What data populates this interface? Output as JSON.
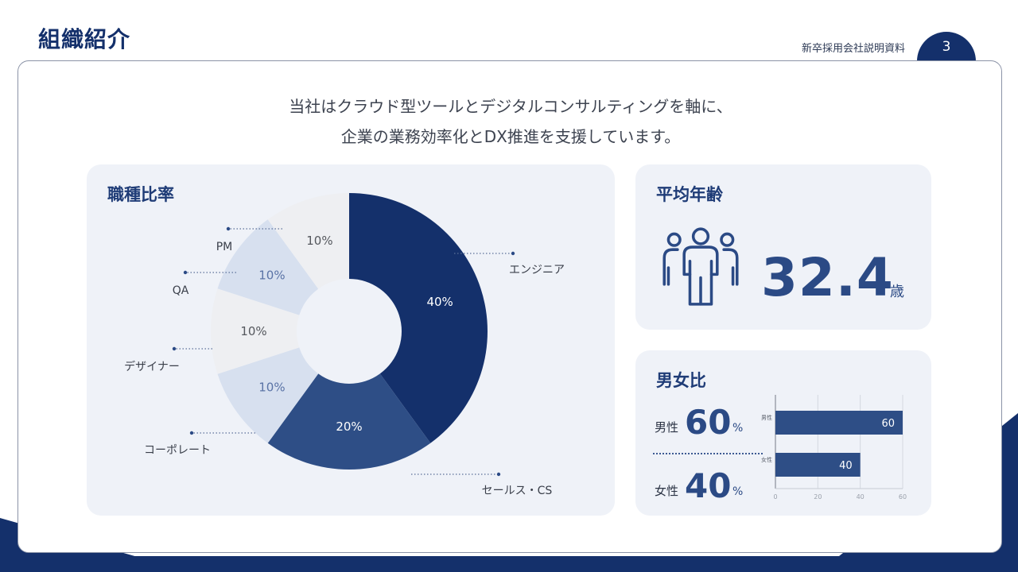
{
  "header": {
    "title": "組織紹介",
    "doc_label": "新卒採用会社説明資料",
    "page_number": "3"
  },
  "intro": {
    "line1": "当社はクラウド型ツールとデジタルコンサルティングを軸に、",
    "line2": "企業の業務効率化とDX推進を支援しています。"
  },
  "job_panel": {
    "title": "職種比率"
  },
  "age_panel": {
    "title": "平均年齢",
    "value": "32.4",
    "unit": "歳",
    "icon": "people-group-icon"
  },
  "gender_panel": {
    "title": "男女比",
    "male_label": "男性",
    "male_value": "60",
    "male_unit": "%",
    "female_label": "女性",
    "female_value": "40",
    "female_unit": "%"
  },
  "colors": {
    "navy": "#14306b",
    "blue": "#2e4e86",
    "light_blue": "#d7e0ef",
    "light_gray": "#eeeff2",
    "panel_bg": "#eff2f8"
  },
  "chart_data": [
    {
      "type": "pie",
      "title": "職種比率",
      "categories": [
        "エンジニア",
        "セールス・CS",
        "コーポレート",
        "デザイナー",
        "QA",
        "PM"
      ],
      "values": [
        40,
        20,
        10,
        10,
        10,
        10
      ],
      "data_labels": [
        "40%",
        "20%",
        "10%",
        "10%",
        "10%",
        "10%"
      ],
      "colors": [
        "#14306b",
        "#2e4e86",
        "#d7e0ef",
        "#eeeff2",
        "#d7e0ef",
        "#eeeff2"
      ],
      "label_colors": [
        "#ffffff",
        "#ffffff",
        "#5a73a6",
        "#55585e",
        "#5a73a6",
        "#55585e"
      ],
      "donut": true
    },
    {
      "type": "bar",
      "orientation": "horizontal",
      "categories": [
        "男性",
        "女性"
      ],
      "values": [
        60,
        40
      ],
      "data_labels": [
        "60",
        "40"
      ],
      "xlim": [
        0,
        60
      ],
      "xticks": [
        0,
        20,
        40,
        60
      ],
      "grid": true,
      "color": "#2e4e86"
    }
  ]
}
